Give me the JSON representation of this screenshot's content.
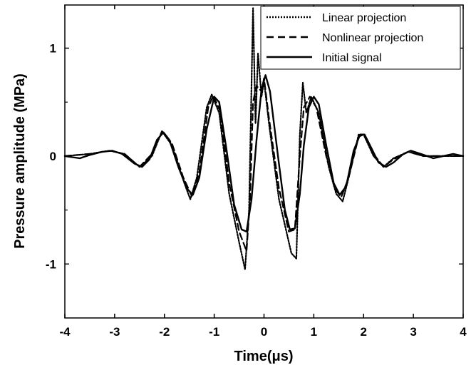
{
  "chart_data": {
    "type": "line",
    "title": "",
    "xlabel": "Time(μs)",
    "ylabel": "Pressure amplitude (MPa)",
    "xlim": [
      -4,
      4
    ],
    "ylim": [
      -1.5,
      1.4
    ],
    "x_ticks": [
      -4,
      -3,
      -2,
      -1,
      0,
      1,
      2,
      3,
      4
    ],
    "x_tick_labels": [
      "-4",
      "-3",
      "-2",
      "-1",
      "0",
      "1",
      "2",
      "3",
      "4"
    ],
    "y_ticks": [
      -1,
      0,
      1
    ],
    "y_tick_labels": [
      "-1",
      "0",
      "1"
    ],
    "grid": false,
    "legend_position": "top-right",
    "series": [
      {
        "name": "Linear projection",
        "style": "dotted",
        "points": [
          [
            -4.0,
            0.0
          ],
          [
            -3.5,
            0.02
          ],
          [
            -3.1,
            0.05
          ],
          [
            -2.8,
            0.02
          ],
          [
            -2.5,
            -0.1
          ],
          [
            -2.25,
            0.0
          ],
          [
            -2.05,
            0.23
          ],
          [
            -1.85,
            0.1
          ],
          [
            -1.6,
            -0.25
          ],
          [
            -1.48,
            -0.4
          ],
          [
            -1.35,
            -0.2
          ],
          [
            -1.15,
            0.45
          ],
          [
            -1.05,
            0.57
          ],
          [
            -0.9,
            0.4
          ],
          [
            -0.7,
            -0.35
          ],
          [
            -0.5,
            -0.8
          ],
          [
            -0.38,
            -1.05
          ],
          [
            -0.3,
            -0.5
          ],
          [
            -0.22,
            1.37
          ],
          [
            -0.17,
            0.3
          ],
          [
            -0.12,
            0.95
          ],
          [
            -0.05,
            0.55
          ],
          [
            0.0,
            0.7
          ],
          [
            0.1,
            0.3
          ],
          [
            0.3,
            -0.4
          ],
          [
            0.55,
            -0.9
          ],
          [
            0.65,
            -0.95
          ],
          [
            0.72,
            0.2
          ],
          [
            0.78,
            0.68
          ],
          [
            0.85,
            0.4
          ],
          [
            0.95,
            0.55
          ],
          [
            1.1,
            0.4
          ],
          [
            1.3,
            -0.1
          ],
          [
            1.45,
            -0.35
          ],
          [
            1.58,
            -0.42
          ],
          [
            1.7,
            -0.2
          ],
          [
            1.9,
            0.2
          ],
          [
            2.0,
            0.2
          ],
          [
            2.2,
            0.0
          ],
          [
            2.4,
            -0.1
          ],
          [
            2.6,
            -0.02
          ],
          [
            2.9,
            0.04
          ],
          [
            3.2,
            0.0
          ],
          [
            3.6,
            0.0
          ],
          [
            4.0,
            0.0
          ]
        ]
      },
      {
        "name": "Nonlinear projection",
        "style": "dashed",
        "points": [
          [
            -4.0,
            0.0
          ],
          [
            -3.5,
            0.02
          ],
          [
            -3.1,
            0.05
          ],
          [
            -2.8,
            0.02
          ],
          [
            -2.5,
            -0.1
          ],
          [
            -2.25,
            0.02
          ],
          [
            -2.05,
            0.23
          ],
          [
            -1.85,
            0.12
          ],
          [
            -1.62,
            -0.2
          ],
          [
            -1.45,
            -0.37
          ],
          [
            -1.3,
            -0.15
          ],
          [
            -1.12,
            0.45
          ],
          [
            -1.02,
            0.56
          ],
          [
            -0.88,
            0.42
          ],
          [
            -0.7,
            -0.25
          ],
          [
            -0.5,
            -0.7
          ],
          [
            -0.35,
            -0.88
          ],
          [
            -0.28,
            -0.4
          ],
          [
            -0.22,
            0.5
          ],
          [
            -0.15,
            0.65
          ],
          [
            -0.05,
            0.6
          ],
          [
            0.0,
            0.72
          ],
          [
            0.1,
            0.35
          ],
          [
            0.3,
            -0.3
          ],
          [
            0.5,
            -0.7
          ],
          [
            0.62,
            -0.68
          ],
          [
            0.72,
            0.0
          ],
          [
            0.8,
            0.45
          ],
          [
            0.92,
            0.55
          ],
          [
            1.05,
            0.45
          ],
          [
            1.25,
            0.0
          ],
          [
            1.42,
            -0.3
          ],
          [
            1.55,
            -0.38
          ],
          [
            1.7,
            -0.2
          ],
          [
            1.9,
            0.18
          ],
          [
            2.0,
            0.2
          ],
          [
            2.2,
            0.02
          ],
          [
            2.4,
            -0.1
          ],
          [
            2.6,
            -0.03
          ],
          [
            2.9,
            0.04
          ],
          [
            3.2,
            0.0
          ],
          [
            3.6,
            0.0
          ],
          [
            4.0,
            0.0
          ]
        ]
      },
      {
        "name": "Initial signal",
        "style": "solid",
        "points": [
          [
            -4.0,
            0.0
          ],
          [
            -3.7,
            -0.02
          ],
          [
            -3.5,
            0.01
          ],
          [
            -3.25,
            0.04
          ],
          [
            -3.05,
            0.05
          ],
          [
            -2.85,
            0.02
          ],
          [
            -2.6,
            -0.07
          ],
          [
            -2.45,
            -0.1
          ],
          [
            -2.3,
            -0.03
          ],
          [
            -2.15,
            0.15
          ],
          [
            -2.02,
            0.22
          ],
          [
            -1.9,
            0.15
          ],
          [
            -1.72,
            -0.1
          ],
          [
            -1.55,
            -0.3
          ],
          [
            -1.43,
            -0.36
          ],
          [
            -1.3,
            -0.2
          ],
          [
            -1.15,
            0.25
          ],
          [
            -1.0,
            0.55
          ],
          [
            -0.9,
            0.5
          ],
          [
            -0.75,
            0.05
          ],
          [
            -0.6,
            -0.45
          ],
          [
            -0.45,
            -0.68
          ],
          [
            -0.35,
            -0.7
          ],
          [
            -0.25,
            -0.4
          ],
          [
            -0.15,
            0.15
          ],
          [
            -0.05,
            0.62
          ],
          [
            0.03,
            0.75
          ],
          [
            0.12,
            0.6
          ],
          [
            0.28,
            0.0
          ],
          [
            0.42,
            -0.5
          ],
          [
            0.52,
            -0.68
          ],
          [
            0.62,
            -0.67
          ],
          [
            0.72,
            -0.35
          ],
          [
            0.8,
            0.1
          ],
          [
            0.9,
            0.45
          ],
          [
            1.0,
            0.55
          ],
          [
            1.1,
            0.48
          ],
          [
            1.25,
            0.1
          ],
          [
            1.4,
            -0.25
          ],
          [
            1.52,
            -0.36
          ],
          [
            1.65,
            -0.28
          ],
          [
            1.8,
            0.05
          ],
          [
            1.93,
            0.2
          ],
          [
            2.02,
            0.2
          ],
          [
            2.15,
            0.08
          ],
          [
            2.3,
            -0.06
          ],
          [
            2.45,
            -0.1
          ],
          [
            2.6,
            -0.06
          ],
          [
            2.8,
            0.02
          ],
          [
            2.95,
            0.05
          ],
          [
            3.15,
            0.02
          ],
          [
            3.4,
            -0.02
          ],
          [
            3.6,
            0.0
          ],
          [
            3.8,
            0.02
          ],
          [
            4.0,
            0.0
          ]
        ]
      }
    ]
  }
}
